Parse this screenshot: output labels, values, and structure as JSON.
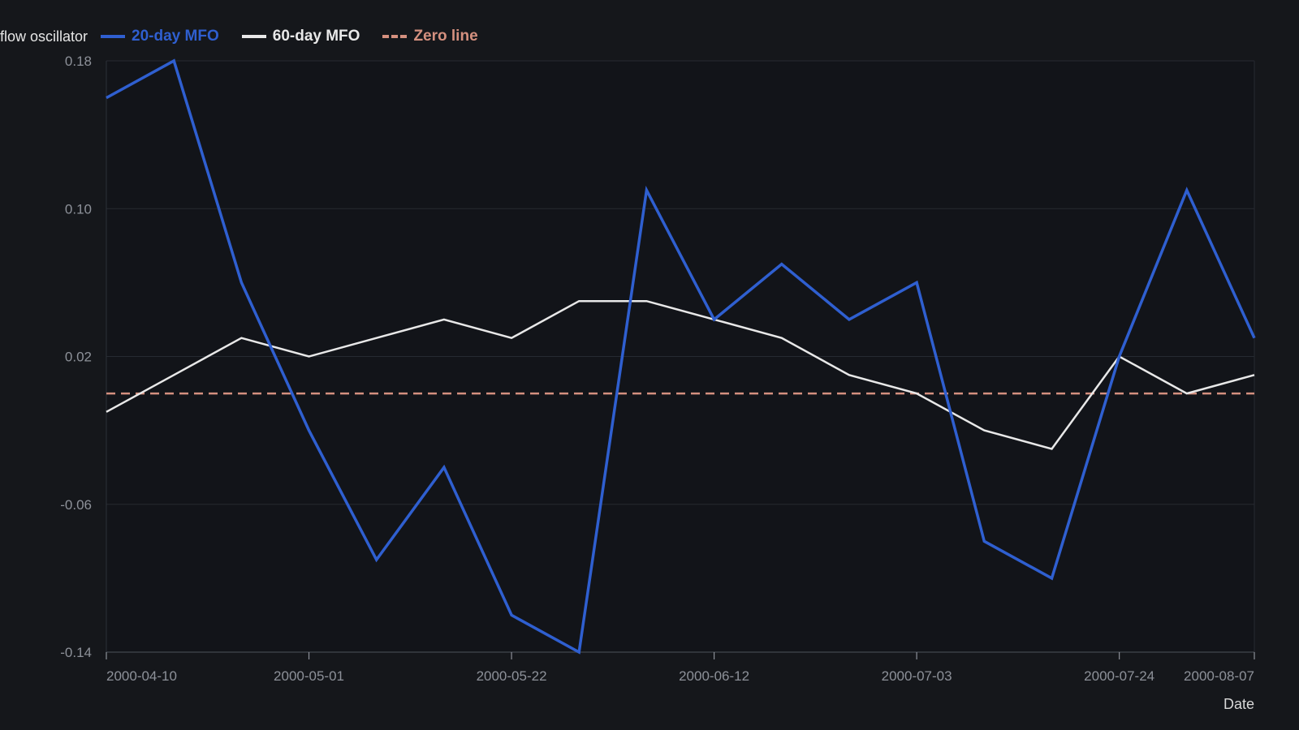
{
  "chart_data": {
    "type": "line",
    "title": "",
    "ylabel": "flow oscillator",
    "xlabel": "Date",
    "ylim": [
      -0.14,
      0.18
    ],
    "yticks": [
      "0.18",
      "0.10",
      "0.02",
      "-0.06",
      "-0.14"
    ],
    "xticks": [
      "2000-04-10",
      "2000-05-01",
      "2000-05-22",
      "2000-06-12",
      "2000-07-03",
      "2000-07-24",
      "2000-08-07"
    ],
    "x": [
      "2000-04-10",
      "2000-04-17",
      "2000-04-24",
      "2000-05-01",
      "2000-05-08",
      "2000-05-15",
      "2000-05-22",
      "2000-05-29",
      "2000-06-05",
      "2000-06-12",
      "2000-06-19",
      "2000-06-26",
      "2000-07-03",
      "2000-07-10",
      "2000-07-17",
      "2000-07-24",
      "2000-07-31",
      "2000-08-07"
    ],
    "grid": true,
    "legend_position": "top-left",
    "series": [
      {
        "name": "20-day MFO",
        "color": "#2f5fd0",
        "style": "solid",
        "values": [
          0.16,
          0.18,
          0.06,
          -0.02,
          -0.09,
          -0.04,
          -0.12,
          -0.14,
          0.11,
          0.04,
          0.07,
          0.04,
          0.06,
          -0.08,
          -0.1,
          0.02,
          0.11,
          0.03
        ]
      },
      {
        "name": "60-day MFO",
        "color": "#e8e8e8",
        "style": "solid",
        "values": [
          -0.01,
          0.01,
          0.03,
          0.02,
          0.03,
          0.04,
          0.03,
          0.05,
          0.05,
          0.04,
          0.03,
          0.01,
          0.0,
          -0.02,
          -0.03,
          0.02,
          0.0,
          0.01
        ]
      },
      {
        "name": "Zero line",
        "color": "#d4907f",
        "style": "dashed",
        "values": [
          0,
          0,
          0,
          0,
          0,
          0,
          0,
          0,
          0,
          0,
          0,
          0,
          0,
          0,
          0,
          0,
          0,
          0
        ]
      }
    ]
  }
}
